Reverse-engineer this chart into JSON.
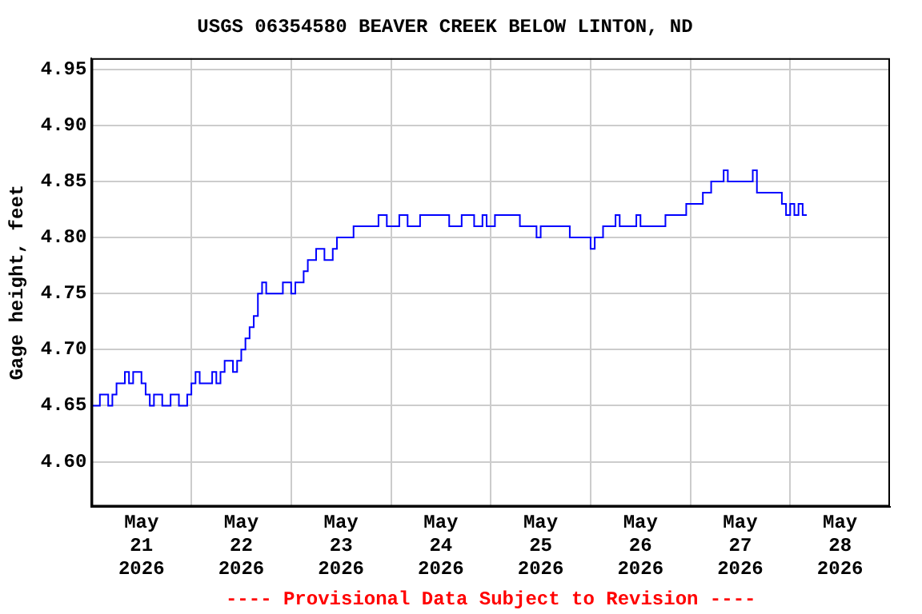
{
  "chart_data": {
    "type": "step",
    "title": "USGS 06354580 BEAVER CREEK BELOW LINTON, ND",
    "ylabel": "Gage height, feet",
    "annotations": [
      "---- Provisional Data Subject to Revision ----"
    ],
    "xlim": [
      "2026-05-21T00:00",
      "2026-05-29T00:00"
    ],
    "xticks": [
      {
        "value": "2026-05-21T12:00",
        "label": "May\n21\n2026"
      },
      {
        "value": "2026-05-22T00:00",
        "label": null
      },
      {
        "value": "2026-05-22T12:00",
        "label": "May\n22\n2026"
      },
      {
        "value": "2026-05-23T00:00",
        "label": null
      },
      {
        "value": "2026-05-23T12:00",
        "label": "May\n23\n2026"
      },
      {
        "value": "2026-05-24T00:00",
        "label": null
      },
      {
        "value": "2026-05-24T12:00",
        "label": "May\n24\n2026"
      },
      {
        "value": "2026-05-25T00:00",
        "label": null
      },
      {
        "value": "2026-05-25T12:00",
        "label": "May\n25\n2026"
      },
      {
        "value": "2026-05-26T00:00",
        "label": null
      },
      {
        "value": "2026-05-26T12:00",
        "label": "May\n26\n2026"
      },
      {
        "value": "2026-05-27T00:00",
        "label": null
      },
      {
        "value": "2026-05-27T12:00",
        "label": "May\n27\n2026"
      },
      {
        "value": "2026-05-28T00:00",
        "label": null
      },
      {
        "value": "2026-05-28T12:00",
        "label": "May\n28\n2026"
      }
    ],
    "ylim": [
      4.56,
      4.96
    ],
    "yticks": [
      {
        "value": 4.6,
        "label": "4.60"
      },
      {
        "value": 4.65,
        "label": "4.65"
      },
      {
        "value": 4.7,
        "label": "4.70"
      },
      {
        "value": 4.75,
        "label": "4.75"
      },
      {
        "value": 4.8,
        "label": "4.80"
      },
      {
        "value": 4.85,
        "label": "4.85"
      },
      {
        "value": 4.9,
        "label": "4.90"
      },
      {
        "value": 4.95,
        "label": "4.95"
      }
    ],
    "grid": true,
    "legend": false,
    "series": [
      {
        "color": "#0000ff",
        "x": [
          "2026-05-21T00:00",
          "2026-05-21T02:00",
          "2026-05-21T04:00",
          "2026-05-21T05:00",
          "2026-05-21T06:00",
          "2026-05-21T08:00",
          "2026-05-21T09:00",
          "2026-05-21T10:00",
          "2026-05-21T12:00",
          "2026-05-21T13:00",
          "2026-05-21T14:00",
          "2026-05-21T15:00",
          "2026-05-21T17:00",
          "2026-05-21T19:00",
          "2026-05-21T21:00",
          "2026-05-21T23:00",
          "2026-05-22T00:00",
          "2026-05-22T01:00",
          "2026-05-22T02:00",
          "2026-05-22T05:00",
          "2026-05-22T06:00",
          "2026-05-22T07:00",
          "2026-05-22T08:00",
          "2026-05-22T10:00",
          "2026-05-22T11:00",
          "2026-05-22T12:00",
          "2026-05-22T13:00",
          "2026-05-22T14:00",
          "2026-05-22T15:00",
          "2026-05-22T16:00",
          "2026-05-22T17:00",
          "2026-05-22T18:00",
          "2026-05-22T22:00",
          "2026-05-23T00:00",
          "2026-05-23T01:00",
          "2026-05-23T03:00",
          "2026-05-23T04:00",
          "2026-05-23T06:00",
          "2026-05-23T08:00",
          "2026-05-23T10:00",
          "2026-05-23T11:00",
          "2026-05-23T15:00",
          "2026-05-23T21:00",
          "2026-05-23T23:00",
          "2026-05-24T02:00",
          "2026-05-24T04:00",
          "2026-05-24T07:00",
          "2026-05-24T14:00",
          "2026-05-24T17:00",
          "2026-05-24T20:00",
          "2026-05-24T22:00",
          "2026-05-24T23:00",
          "2026-05-25T01:00",
          "2026-05-25T07:00",
          "2026-05-25T11:00",
          "2026-05-25T12:00",
          "2026-05-25T19:00",
          "2026-05-26T00:00",
          "2026-05-26T01:00",
          "2026-05-26T03:00",
          "2026-05-26T06:00",
          "2026-05-26T07:00",
          "2026-05-26T11:00",
          "2026-05-26T12:00",
          "2026-05-26T18:00",
          "2026-05-26T23:00",
          "2026-05-27T03:00",
          "2026-05-27T05:00",
          "2026-05-27T08:00",
          "2026-05-27T09:00",
          "2026-05-27T15:00",
          "2026-05-27T16:00",
          "2026-05-27T22:00",
          "2026-05-27T23:00",
          "2026-05-28T00:00",
          "2026-05-28T01:00",
          "2026-05-28T02:00",
          "2026-05-28T03:00",
          "2026-05-28T04:00"
        ],
        "values": [
          4.65,
          4.66,
          4.65,
          4.66,
          4.67,
          4.68,
          4.67,
          4.68,
          4.67,
          4.66,
          4.65,
          4.66,
          4.65,
          4.66,
          4.65,
          4.66,
          4.67,
          4.68,
          4.67,
          4.68,
          4.67,
          4.68,
          4.69,
          4.68,
          4.69,
          4.7,
          4.71,
          4.72,
          4.73,
          4.75,
          4.76,
          4.75,
          4.76,
          4.75,
          4.76,
          4.77,
          4.78,
          4.79,
          4.78,
          4.79,
          4.8,
          4.81,
          4.82,
          4.81,
          4.82,
          4.81,
          4.82,
          4.81,
          4.82,
          4.81,
          4.82,
          4.81,
          4.82,
          4.81,
          4.8,
          4.81,
          4.8,
          4.79,
          4.8,
          4.81,
          4.82,
          4.81,
          4.82,
          4.81,
          4.82,
          4.83,
          4.84,
          4.85,
          4.86,
          4.85,
          4.86,
          4.84,
          4.83,
          4.82,
          4.83,
          4.82,
          4.83,
          4.82,
          4.82
        ]
      }
    ]
  }
}
